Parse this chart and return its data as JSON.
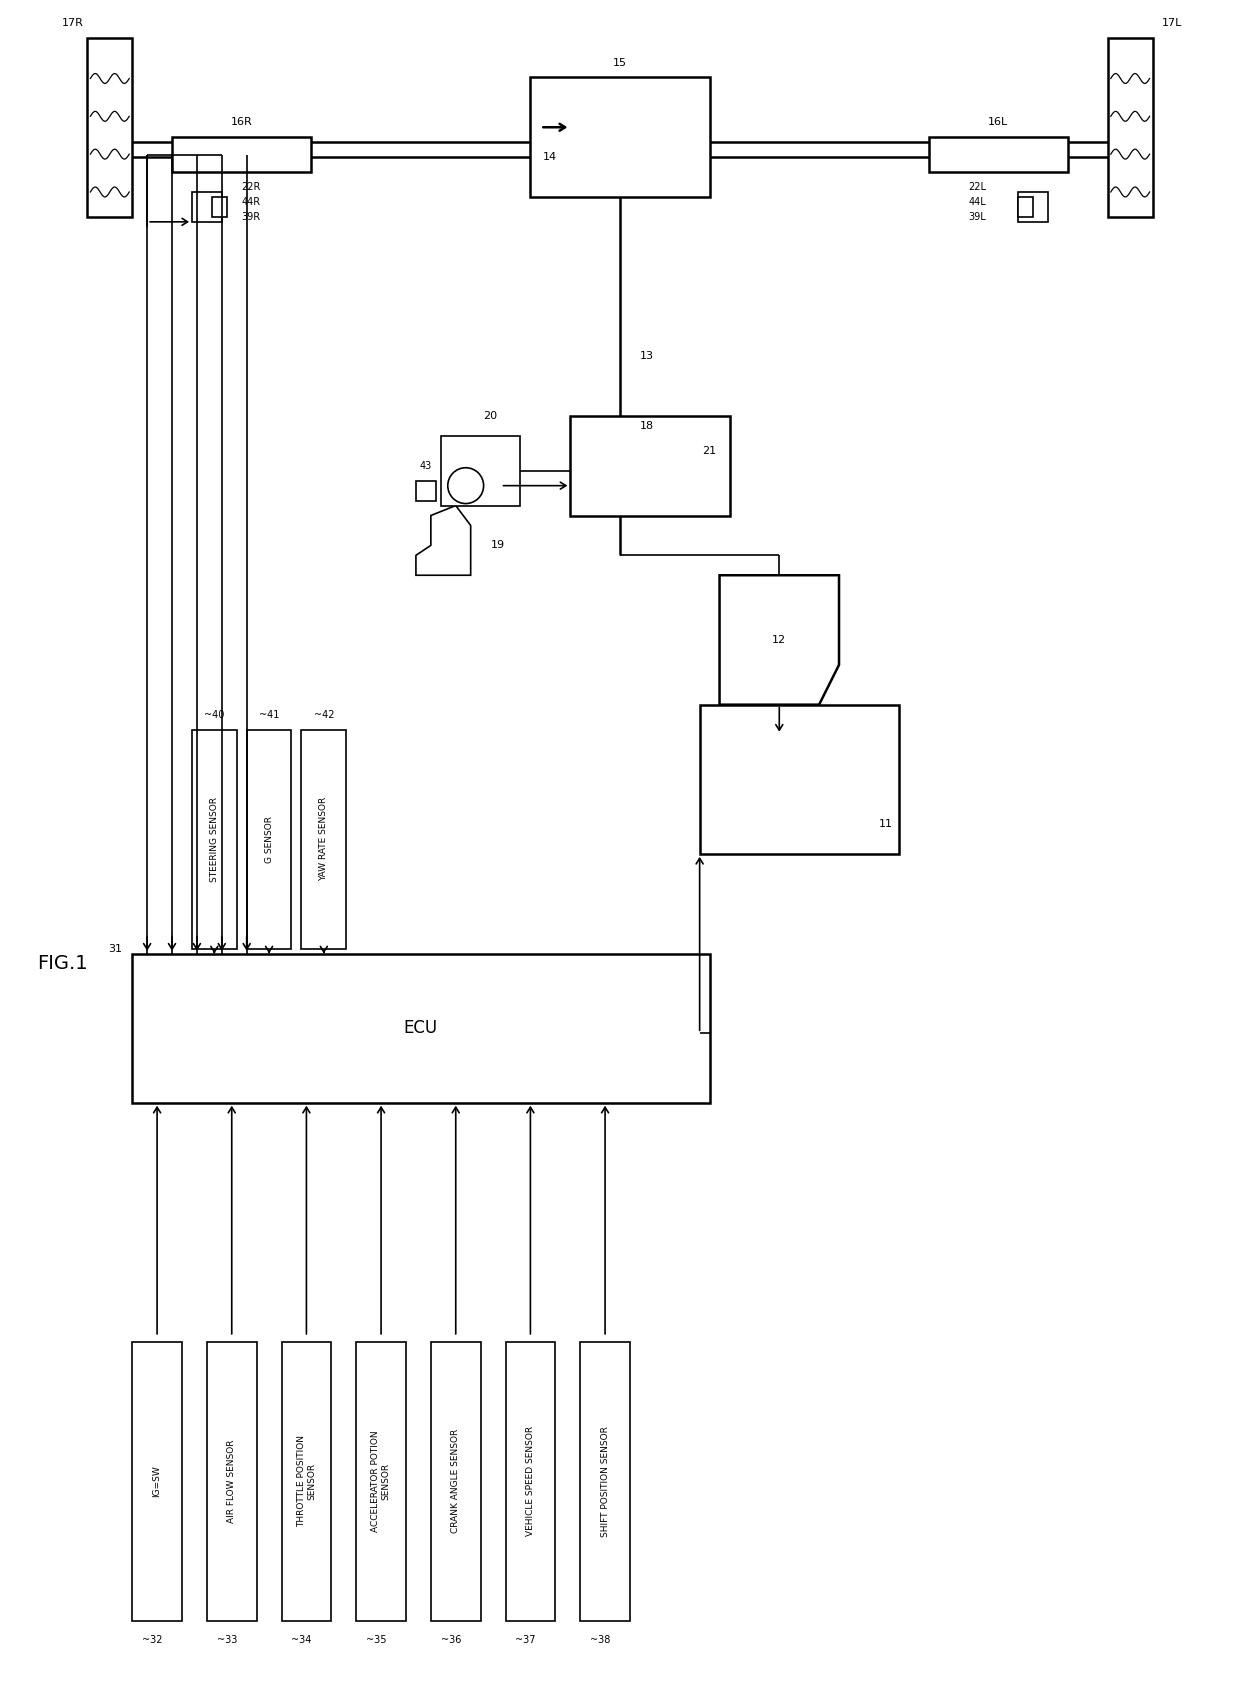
{
  "title": "FIG.1",
  "bg_color": "#ffffff",
  "line_color": "#000000",
  "fig_width": 12.4,
  "fig_height": 17.04,
  "bottom_sensors": [
    {
      "label": "IG=SW",
      "num": "32"
    },
    {
      "label": "AIR FLOW SENSOR",
      "num": "33"
    },
    {
      "label": "THROTTLE POSITION\nSENSOR",
      "num": "34"
    },
    {
      "label": "ACCELERATOR POTION\nSENSOR",
      "num": "35"
    },
    {
      "label": "CRANK ANGLE SENSOR",
      "num": "36"
    },
    {
      "label": "VEHICLE SPEED SENSOR",
      "num": "37"
    },
    {
      "label": "SHIFT POSITION SENSOR",
      "num": "38"
    }
  ],
  "top_sensors": [
    {
      "label": "STEERING SENSOR",
      "num": "40"
    },
    {
      "label": "G SENSOR",
      "num": "41"
    },
    {
      "label": "YAW RATE SENSOR",
      "num": "42"
    }
  ],
  "ecu_label": "ECU",
  "ecu_num": "31"
}
